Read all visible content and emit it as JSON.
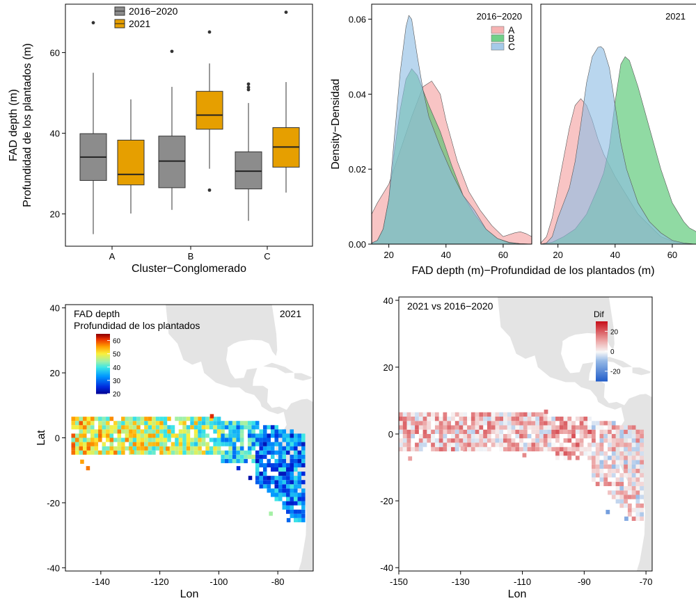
{
  "colors": {
    "grey": "#8c8c8c",
    "orange": "#e69f00",
    "A": "#f4a0a0",
    "B": "#4cc46a",
    "C": "#8ebde4",
    "land": "#e4e4e4",
    "diverging_low": "#2e6fcb",
    "diverging_mid": "#f7f7f7",
    "diverging_high": "#d42a2a"
  },
  "chart_data": [
    {
      "id": "boxplot",
      "type": "box",
      "xlabel": "Cluster−Conglomerado",
      "ylabel_line1": "FAD depth (m)",
      "ylabel_line2": "Profundidad de los plantados (m)",
      "categories": [
        "A",
        "B",
        "C"
      ],
      "yticks": [
        20,
        40,
        60
      ],
      "ylim": [
        12,
        72
      ],
      "series": [
        {
          "name": "2016−2020",
          "color": "#8c8c8c",
          "boxes": [
            {
              "cat": "A",
              "lw": 15,
              "q1": 28.3,
              "median": 34.1,
              "q3": 39.9,
              "uw": 55,
              "outliers": [
                67.4
              ]
            },
            {
              "cat": "B",
              "lw": 21,
              "q1": 26.5,
              "median": 33.1,
              "q3": 39.3,
              "uw": 51.5,
              "outliers": [
                60.3
              ]
            },
            {
              "cat": "C",
              "lw": 18.3,
              "q1": 26.2,
              "median": 30.6,
              "q3": 35.4,
              "uw": 47.5,
              "outliers": [
                50.8,
                51.4,
                52.2
              ]
            }
          ]
        },
        {
          "name": "2021",
          "color": "#e69f00",
          "boxes": [
            {
              "cat": "A",
              "lw": 20.1,
              "q1": 27.2,
              "median": 29.8,
              "q3": 38.3,
              "uw": 48.4,
              "outliers": []
            },
            {
              "cat": "B",
              "lw": 31.2,
              "q1": 41,
              "median": 44.5,
              "q3": 50.4,
              "uw": 57.3,
              "outliers": [
                25.9,
                65.1
              ]
            },
            {
              "cat": "C",
              "lw": 25.3,
              "q1": 31.6,
              "median": 36.6,
              "q3": 41.4,
              "uw": 52.7,
              "outliers": [
                70
              ]
            }
          ]
        }
      ]
    },
    {
      "id": "density",
      "type": "area",
      "ylabel": "Density−Densidad",
      "xlabel": "FAD depth (m)−Profundidad de los plantados (m)",
      "yticks": [
        0.0,
        0.02,
        0.04,
        0.06
      ],
      "ytick_labels": [
        "0.00",
        "0.02",
        "0.04",
        "0.06"
      ],
      "ylim": [
        0,
        0.064
      ],
      "xticks": [
        20,
        40,
        60
      ],
      "xlim": [
        14,
        70
      ],
      "panels": [
        {
          "label": "2016−2020",
          "series": [
            {
              "name": "A",
              "color": "#f4a0a0",
              "x": [
                14,
                16,
                20,
                24,
                28,
                32,
                35,
                38,
                40,
                44,
                48,
                52,
                56,
                60,
                64,
                66,
                68,
                70
              ],
              "y": [
                0.008,
                0.011,
                0.016,
                0.025,
                0.034,
                0.042,
                0.0435,
                0.04,
                0.033,
                0.022,
                0.014,
                0.009,
                0.005,
                0.002,
                0.003,
                0.0033,
                0.0028,
                0.002
              ]
            },
            {
              "name": "B",
              "color": "#4cc46a",
              "x": [
                14,
                16,
                18,
                20,
                22,
                24,
                26,
                28,
                30,
                34,
                38,
                42,
                46,
                50,
                54,
                58,
                62,
                66,
                70
              ],
              "y": [
                0.0002,
                0.001,
                0.004,
                0.012,
                0.025,
                0.036,
                0.044,
                0.0468,
                0.045,
                0.037,
                0.03,
                0.021,
                0.013,
                0.008,
                0.004,
                0.0015,
                0.0005,
                0.0001,
                0
              ]
            },
            {
              "name": "C",
              "color": "#8ebde4",
              "x": [
                14,
                16,
                18,
                20,
                22,
                24,
                26,
                27,
                28,
                30,
                32,
                34,
                38,
                42,
                46,
                50,
                54,
                58,
                62,
                66,
                70
              ],
              "y": [
                0.0003,
                0.001,
                0.004,
                0.012,
                0.029,
                0.046,
                0.058,
                0.061,
                0.06,
                0.05,
                0.041,
                0.034,
                0.026,
                0.019,
                0.013,
                0.009,
                0.004,
                0.0015,
                0.0004,
                0.0001,
                0
              ]
            }
          ]
        },
        {
          "label": "2021",
          "series": [
            {
              "name": "A",
              "color": "#f4a0a0",
              "x": [
                14,
                16,
                18,
                20,
                22,
                24,
                26,
                28,
                30,
                32,
                34,
                36,
                38,
                40,
                44,
                48,
                52,
                56,
                60,
                64,
                68,
                70
              ],
              "y": [
                0.0003,
                0.002,
                0.007,
                0.015,
                0.023,
                0.031,
                0.037,
                0.0388,
                0.037,
                0.033,
                0.028,
                0.024,
                0.021,
                0.018,
                0.013,
                0.008,
                0.005,
                0.002,
                0.0008,
                0.0002,
                0,
                0
              ]
            },
            {
              "name": "B",
              "color": "#4cc46a",
              "x": [
                14,
                18,
                22,
                26,
                30,
                34,
                36,
                38,
                40,
                42,
                43.5,
                45,
                48,
                52,
                56,
                60,
                64,
                66,
                68,
                70
              ],
              "y": [
                0,
                0.0005,
                0.002,
                0.004,
                0.008,
                0.015,
                0.019,
                0.026,
                0.038,
                0.048,
                0.05,
                0.049,
                0.042,
                0.031,
                0.02,
                0.011,
                0.006,
                0.0043,
                0.0035,
                0.002
              ]
            },
            {
              "name": "C",
              "color": "#8ebde4",
              "x": [
                14,
                16,
                18,
                20,
                22,
                24,
                26,
                28,
                30,
                32,
                34,
                35,
                36,
                38,
                40,
                42,
                44,
                48,
                52,
                56,
                60,
                64,
                68,
                70
              ],
              "y": [
                0,
                0.0003,
                0.002,
                0.007,
                0.011,
                0.015,
                0.022,
                0.032,
                0.043,
                0.05,
                0.0525,
                0.0527,
                0.052,
                0.047,
                0.037,
                0.027,
                0.02,
                0.011,
                0.006,
                0.003,
                0.001,
                0.0003,
                0,
                0
              ]
            }
          ]
        }
      ]
    },
    {
      "id": "map_depth",
      "type": "heatmap",
      "panel_label": "2021",
      "legend_title_line1": "FAD depth",
      "legend_title_line2": "Profundidad de los plantados",
      "legend_ticks": [
        20,
        30,
        40,
        50,
        60
      ],
      "value_range": [
        20,
        65
      ],
      "xlabel": "Lon",
      "ylabel": "Lat",
      "xticks": [
        -140,
        -120,
        -100,
        -80
      ],
      "yticks": [
        -40,
        -20,
        0,
        20,
        40
      ],
      "xlim": [
        -152,
        -68
      ],
      "ylim": [
        -41,
        41
      ],
      "grid": false
    },
    {
      "id": "map_diff",
      "type": "heatmap",
      "panel_label": "2021 vs 2016−2020",
      "legend_title": "Dif",
      "legend_ticks": [
        -20,
        0,
        20
      ],
      "value_range": [
        -30,
        30
      ],
      "xlabel": "Lon",
      "ylabel": "",
      "xticks": [
        -150,
        -130,
        -110,
        -90,
        -70
      ],
      "yticks": [
        -40,
        -20,
        0,
        20,
        40
      ],
      "xlim": [
        -150,
        -68
      ],
      "ylim": [
        -41,
        41
      ],
      "grid": false
    }
  ]
}
